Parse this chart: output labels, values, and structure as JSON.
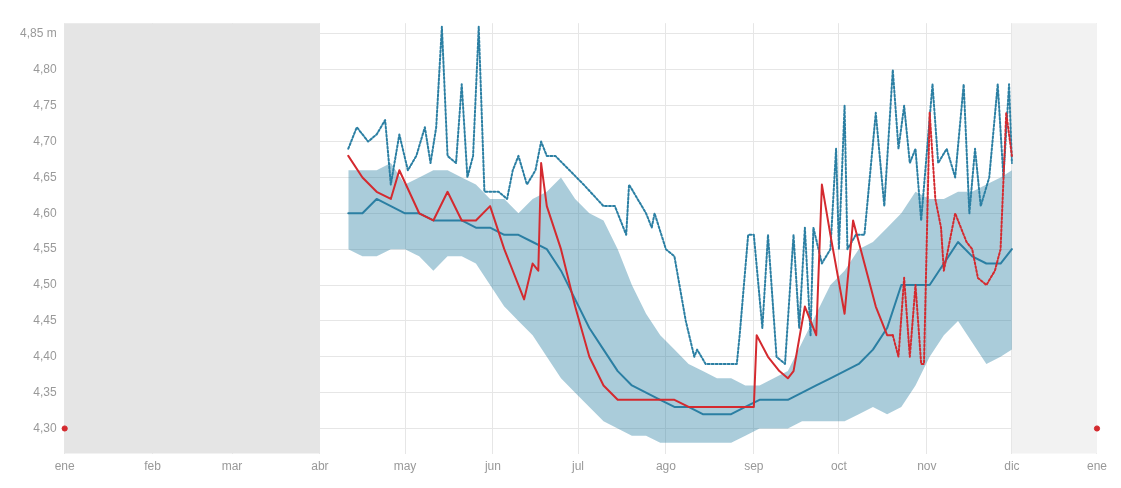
{
  "chart_data": {
    "type": "line",
    "xlim": [
      "--01-01",
      "--12-31"
    ],
    "ylim": [
      4.265,
      4.865
    ],
    "xticks": [
      {
        "value": "--01-01",
        "label": "ene"
      },
      {
        "value": "--02-01",
        "label": "feb"
      },
      {
        "value": "--03-01",
        "label": "mar"
      },
      {
        "value": "--04-01",
        "label": "abr"
      },
      {
        "value": "--05-01",
        "label": "may"
      },
      {
        "value": "--06-01",
        "label": "jun"
      },
      {
        "value": "--07-01",
        "label": "jul"
      },
      {
        "value": "--08-01",
        "label": "ago"
      },
      {
        "value": "--09-01",
        "label": "sep"
      },
      {
        "value": "--10-01",
        "label": "oct"
      },
      {
        "value": "--11-01",
        "label": "nov"
      },
      {
        "value": "--12-01",
        "label": "dic"
      },
      {
        "value": "--12-31",
        "label": "ene"
      }
    ],
    "yticks": [
      {
        "value": 4.3,
        "label": "4,30"
      },
      {
        "value": 4.35,
        "label": "4,35"
      },
      {
        "value": 4.4,
        "label": "4,40"
      },
      {
        "value": 4.45,
        "label": "4,45"
      },
      {
        "value": 4.5,
        "label": "4,50"
      },
      {
        "value": 4.55,
        "label": "4,55"
      },
      {
        "value": 4.6,
        "label": "4,60"
      },
      {
        "value": 4.65,
        "label": "4,65"
      },
      {
        "value": 4.7,
        "label": "4,70"
      },
      {
        "value": 4.75,
        "label": "4,75"
      },
      {
        "value": 4.8,
        "label": "4,80"
      },
      {
        "value": 4.85,
        "label": "4,85 m"
      }
    ],
    "grid": true,
    "marker": "none",
    "bands": [
      {
        "axis": "x",
        "from": "--01-01",
        "to": "--04-01",
        "color": "#e5e5e5"
      },
      {
        "axis": "x",
        "from": "--12-01",
        "to": "--12-31",
        "color": "#f2f2f2"
      }
    ],
    "series": [
      {
        "color": "#2b7fa3",
        "line_style": "solid",
        "x": [
          "--04-11",
          "--04-16",
          "--04-21",
          "--04-26",
          "--05-01",
          "--05-06",
          "--05-11",
          "--05-16",
          "--05-21",
          "--05-26",
          "--05-31",
          "--06-05",
          "--06-10",
          "--06-15",
          "--06-20",
          "--06-25",
          "--06-30",
          "--07-05",
          "--07-10",
          "--07-15",
          "--07-20",
          "--07-25",
          "--07-30",
          "--08-04",
          "--08-09",
          "--08-14",
          "--08-19",
          "--08-24",
          "--08-29",
          "--09-03",
          "--09-08",
          "--09-13",
          "--09-18",
          "--09-23",
          "--09-28",
          "--10-03",
          "--10-08",
          "--10-13",
          "--10-18",
          "--10-23",
          "--10-28",
          "--11-02",
          "--11-07",
          "--11-12",
          "--11-17",
          "--11-22",
          "--11-27",
          "--12-01"
        ],
        "values": [
          4.6,
          4.6,
          4.62,
          4.61,
          4.6,
          4.6,
          4.59,
          4.59,
          4.59,
          4.58,
          4.58,
          4.57,
          4.57,
          4.56,
          4.55,
          4.52,
          4.48,
          4.44,
          4.41,
          4.38,
          4.36,
          4.35,
          4.34,
          4.33,
          4.33,
          4.32,
          4.32,
          4.32,
          4.33,
          4.34,
          4.34,
          4.34,
          4.35,
          4.36,
          4.37,
          4.38,
          4.39,
          4.41,
          4.44,
          4.5,
          4.5,
          4.5,
          4.53,
          4.56,
          4.54,
          4.53,
          4.53,
          4.55
        ],
        "lower": [
          4.55,
          4.54,
          4.54,
          4.55,
          4.55,
          4.54,
          4.52,
          4.54,
          4.54,
          4.53,
          4.5,
          4.47,
          4.45,
          4.43,
          4.4,
          4.37,
          4.35,
          4.33,
          4.31,
          4.3,
          4.29,
          4.29,
          4.28,
          4.28,
          4.28,
          4.28,
          4.28,
          4.28,
          4.29,
          4.3,
          4.3,
          4.3,
          4.31,
          4.31,
          4.31,
          4.31,
          4.32,
          4.33,
          4.32,
          4.33,
          4.36,
          4.4,
          4.43,
          4.45,
          4.42,
          4.39,
          4.4,
          4.41
        ],
        "upper": [
          4.66,
          4.66,
          4.66,
          4.67,
          4.64,
          4.65,
          4.66,
          4.66,
          4.65,
          4.64,
          4.62,
          4.62,
          4.6,
          4.62,
          4.63,
          4.65,
          4.62,
          4.6,
          4.59,
          4.55,
          4.5,
          4.46,
          4.43,
          4.41,
          4.39,
          4.38,
          4.37,
          4.37,
          4.36,
          4.36,
          4.37,
          4.38,
          4.42,
          4.46,
          4.5,
          4.52,
          4.55,
          4.56,
          4.58,
          4.6,
          4.63,
          4.62,
          4.62,
          4.63,
          4.63,
          4.64,
          4.65,
          4.66
        ]
      },
      {
        "color": "#2b7fa3",
        "line_style": "dotted",
        "x": [
          "--04-11",
          "--04-14",
          "--04-18",
          "--04-21",
          "--04-24",
          "--04-26",
          "--04-29",
          "--05-02",
          "--05-05",
          "--05-08",
          "--05-10",
          "--05-12",
          "--05-14",
          "--05-16",
          "--05-19",
          "--05-21",
          "--05-23",
          "--05-25",
          "--05-27",
          "--05-29",
          "--05-31",
          "--06-03",
          "--06-06",
          "--06-08",
          "--06-10",
          "--06-13",
          "--06-16",
          "--06-18",
          "--06-20",
          "--06-23",
          "--06-28",
          "--07-03",
          "--07-10",
          "--07-14",
          "--07-18",
          "--07-19",
          "--07-25",
          "--07-27",
          "--07-28",
          "--08-01",
          "--08-04",
          "--08-08",
          "--08-11",
          "--08-12",
          "--08-15",
          "--08-26",
          "--08-27",
          "--08-30",
          "--09-01",
          "--09-04",
          "--09-06",
          "--09-09",
          "--09-12",
          "--09-15",
          "--09-17",
          "--09-19",
          "--09-21",
          "--09-22",
          "--09-25",
          "--09-28",
          "--09-30",
          "--10-01",
          "--10-03",
          "--10-04",
          "--10-07",
          "--10-10",
          "--10-14",
          "--10-17",
          "--10-20",
          "--10-22",
          "--10-24",
          "--10-26",
          "--10-28",
          "--10-30",
          "--11-03",
          "--11-05",
          "--11-08",
          "--11-11",
          "--11-14",
          "--11-16",
          "--11-18",
          "--11-20",
          "--11-23",
          "--11-26",
          "--11-28",
          "--11-30",
          "--12-01"
        ],
        "values": [
          4.69,
          4.72,
          4.7,
          4.71,
          4.73,
          4.64,
          4.71,
          4.66,
          4.68,
          4.72,
          4.67,
          4.72,
          4.86,
          4.68,
          4.67,
          4.78,
          4.65,
          4.68,
          4.86,
          4.63,
          4.63,
          4.63,
          4.62,
          4.66,
          4.68,
          4.64,
          4.66,
          4.7,
          4.68,
          4.68,
          4.66,
          4.64,
          4.61,
          4.61,
          4.57,
          4.64,
          4.6,
          4.58,
          4.6,
          4.55,
          4.54,
          4.45,
          4.4,
          4.41,
          4.39,
          4.39,
          4.43,
          4.57,
          4.57,
          4.44,
          4.57,
          4.4,
          4.39,
          4.57,
          4.44,
          4.58,
          4.43,
          4.58,
          4.53,
          4.55,
          4.69,
          4.55,
          4.75,
          4.55,
          4.57,
          4.57,
          4.74,
          4.61,
          4.8,
          4.69,
          4.75,
          4.67,
          4.69,
          4.59,
          4.78,
          4.67,
          4.69,
          4.65,
          4.78,
          4.6,
          4.69,
          4.61,
          4.65,
          4.78,
          4.65,
          4.78,
          4.67
        ]
      },
      {
        "color": "#d42a2f",
        "line_style": "solid",
        "x": [
          "--04-11",
          "--04-16",
          "--04-21",
          "--04-26",
          "--04-29",
          "--05-06",
          "--05-11",
          "--05-16",
          "--05-21",
          "--05-26",
          "--05-31",
          "--06-05",
          "--06-10",
          "--06-12",
          "--06-15",
          "--06-17",
          "--06-18",
          "--06-20",
          "--06-25",
          "--06-30",
          "--07-05",
          "--07-10",
          "--07-15",
          "--07-20",
          "--07-25",
          "--07-30",
          "--08-04",
          "--08-09",
          "--08-14",
          "--08-19",
          "--08-24",
          "--08-29",
          "--09-01",
          "--09-02",
          "--09-06",
          "--09-10",
          "--09-13",
          "--09-15",
          "--09-19",
          "--09-21",
          "--09-23",
          "--09-25",
          "--09-28",
          "--10-03",
          "--10-06",
          "--10-10",
          "--10-14",
          "--10-18",
          "--10-20"
        ],
        "values": [
          4.68,
          4.65,
          4.63,
          4.62,
          4.66,
          4.6,
          4.59,
          4.63,
          4.59,
          4.59,
          4.61,
          4.55,
          4.5,
          4.48,
          4.53,
          4.52,
          4.67,
          4.61,
          4.55,
          4.47,
          4.4,
          4.36,
          4.34,
          4.34,
          4.34,
          4.34,
          4.34,
          4.33,
          4.33,
          4.33,
          4.33,
          4.33,
          4.33,
          4.43,
          4.4,
          4.38,
          4.37,
          4.38,
          4.47,
          4.45,
          4.43,
          4.64,
          4.57,
          4.46,
          4.59,
          4.53,
          4.47,
          4.43,
          4.43
        ]
      },
      {
        "color": "#d42a2f",
        "line_style": "dotted",
        "x": [
          "--10-20",
          "--10-22",
          "--10-24",
          "--10-26",
          "--10-28",
          "--10-30",
          "--10-31",
          "--11-02",
          "--11-04",
          "--11-06",
          "--11-07",
          "--11-09",
          "--11-11",
          "--11-13",
          "--11-15",
          "--11-17",
          "--11-19",
          "--11-22",
          "--11-25",
          "--11-27",
          "--11-29",
          "--12-01"
        ],
        "values": [
          4.43,
          4.4,
          4.51,
          4.4,
          4.5,
          4.39,
          4.39,
          4.74,
          4.62,
          4.58,
          4.52,
          4.56,
          4.6,
          4.58,
          4.56,
          4.55,
          4.51,
          4.5,
          4.52,
          4.55,
          4.74,
          4.68
        ]
      },
      {
        "type": "scatter",
        "color": "#d42a2f",
        "marker": "circle",
        "x": [
          "--01-01",
          "--12-31"
        ],
        "values": [
          4.3,
          4.3
        ]
      }
    ]
  }
}
